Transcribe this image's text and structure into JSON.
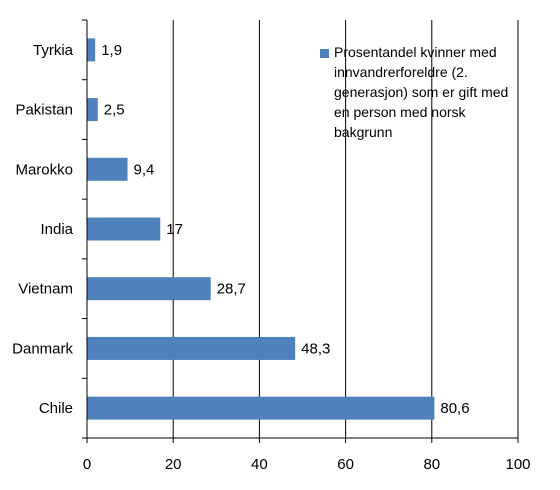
{
  "chart_data": {
    "type": "bar",
    "orientation": "horizontal",
    "categories": [
      "Tyrkia",
      "Pakistan",
      "Marokko",
      "India",
      "Vietnam",
      "Danmark",
      "Chile"
    ],
    "series": [
      {
        "name": "Prosentandel kvinner med innvandrerforeldre (2. generasjon) som er gift med en person med norsk bakgrunn",
        "values": [
          1.9,
          2.5,
          9.4,
          17,
          28.7,
          48.3,
          80.6
        ],
        "value_labels": [
          "1,9",
          "2,5",
          "9,4",
          "17",
          "28,7",
          "48,3",
          "80,6"
        ],
        "color": "#4F81BD"
      }
    ],
    "xlim": [
      0,
      100
    ],
    "xticks": [
      0,
      20,
      40,
      60,
      80,
      100
    ],
    "xtick_labels": [
      "0",
      "20",
      "40",
      "60",
      "80",
      "100"
    ],
    "grid": true,
    "legend_position": "top-right",
    "title": "",
    "xlabel": "",
    "ylabel": ""
  }
}
